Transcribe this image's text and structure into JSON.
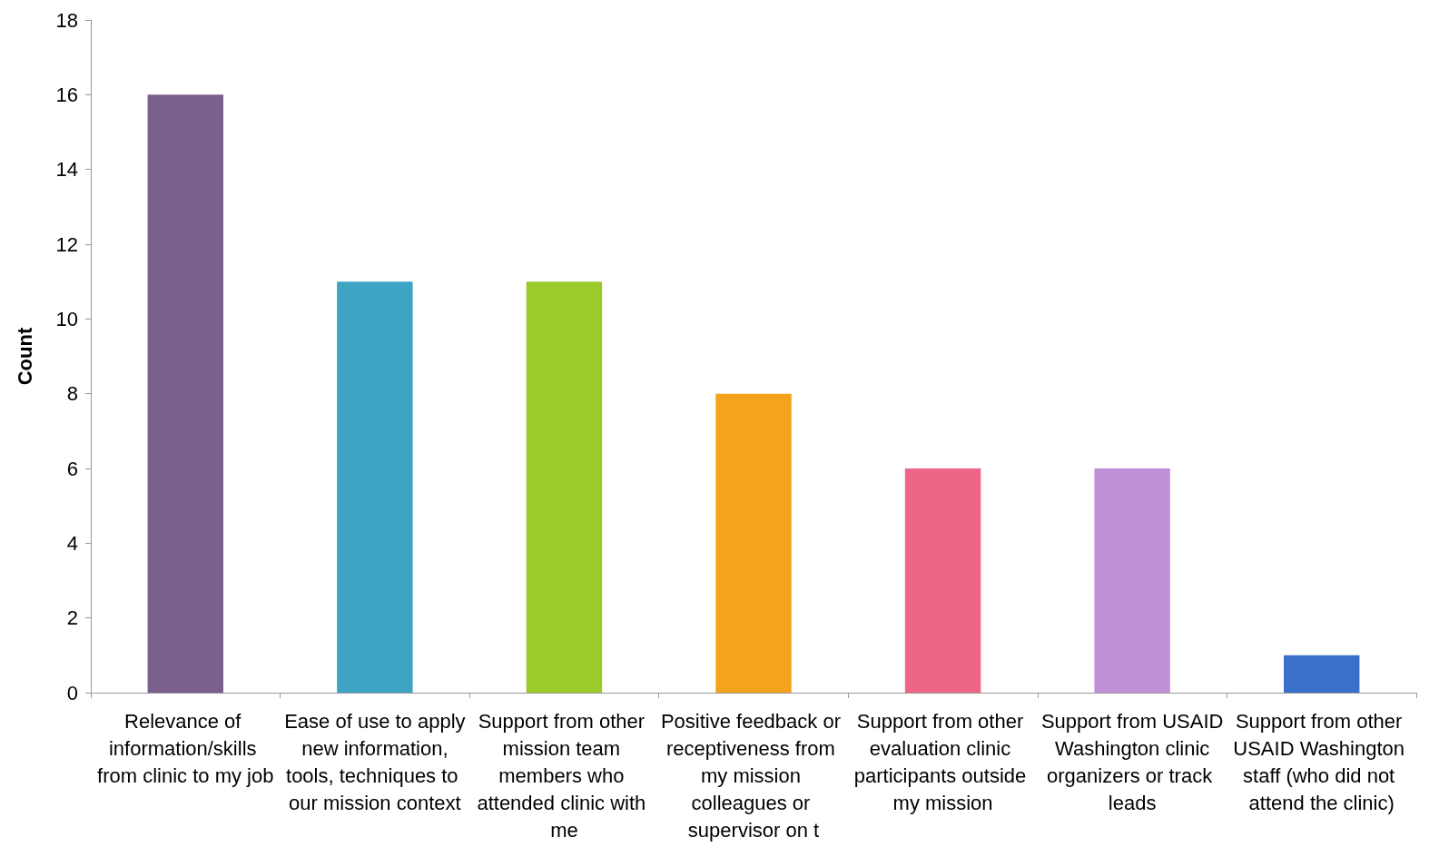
{
  "chart_data": {
    "type": "bar",
    "ylabel": "Count",
    "categories": [
      "Relevance of information/skills from clinic to my job",
      "Ease of use to apply new information, tools, techniques to our mission context",
      "Support from other mission team members who attended clinic with me",
      "Positive feedback or receptiveness from my mission colleagues or supervisor on t",
      "Support from other evaluation clinic participants outside my mission",
      "Support from USAID Washington clinic organizers or track leads",
      "Support from other USAID Washington staff (who did not attend the clinic)"
    ],
    "values": [
      16,
      11,
      11,
      8,
      6,
      6,
      1
    ],
    "colors": [
      "#7b5f8c",
      "#3fa3c4",
      "#9acb2a",
      "#f4a31c",
      "#ef6587",
      "#bf8fd8",
      "#3b6fcc"
    ],
    "ylim": [
      0,
      18
    ],
    "yticks": [
      0,
      2,
      4,
      6,
      8,
      10,
      12,
      14,
      16,
      18
    ]
  }
}
